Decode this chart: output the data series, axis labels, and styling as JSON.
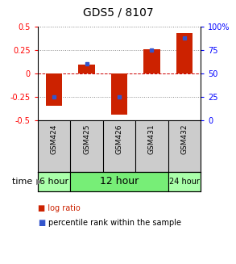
{
  "title": "GDS5 / 8107",
  "samples": [
    "GSM424",
    "GSM425",
    "GSM426",
    "GSM431",
    "GSM432"
  ],
  "log_ratios": [
    -0.35,
    0.09,
    -0.44,
    0.26,
    0.43
  ],
  "percentile_ranks": [
    25,
    60,
    25,
    75,
    88
  ],
  "percentile_rank_scale": 100,
  "ylim": [
    -0.5,
    0.5
  ],
  "yticks": [
    -0.5,
    -0.25,
    0,
    0.25,
    0.5
  ],
  "right_yticks": [
    0,
    25,
    50,
    75,
    100
  ],
  "right_ytick_labels": [
    "0",
    "25",
    "50",
    "75",
    "100%"
  ],
  "bar_color": "#CC2200",
  "dot_color": "#3355CC",
  "time_groups": [
    {
      "label": "6 hour",
      "samples": [
        "GSM424"
      ],
      "color": "#AAFFAA",
      "fontsize": 8
    },
    {
      "label": "12 hour",
      "samples": [
        "GSM425",
        "GSM426",
        "GSM431"
      ],
      "color": "#77EE77",
      "fontsize": 9
    },
    {
      "label": "24 hour",
      "samples": [
        "GSM432"
      ],
      "color": "#AAFFAA",
      "fontsize": 7
    }
  ],
  "sample_bg_color": "#CCCCCC",
  "grid_dotted_color": "#888888",
  "zero_line_color": "#CC0000",
  "background_color": "#FFFFFF",
  "title_fontsize": 10,
  "tick_fontsize": 7,
  "sample_label_fontsize": 6.5,
  "time_label_fontsize": 8,
  "legend_fontsize": 7,
  "bar_width": 0.5
}
